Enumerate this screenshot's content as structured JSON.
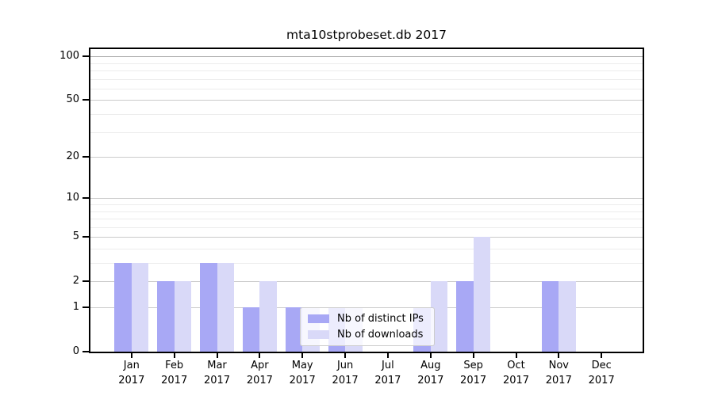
{
  "chart_data": {
    "type": "bar",
    "title": "mta10stprobeset.db 2017",
    "categories": [
      "Jan",
      "Feb",
      "Mar",
      "Apr",
      "May",
      "Jun",
      "Jul",
      "Aug",
      "Sep",
      "Oct",
      "Nov",
      "Dec"
    ],
    "x_tick_year_line": "2017",
    "series": [
      {
        "name": "Nb of distinct IPs",
        "color": "#a8a8f5",
        "values": [
          3,
          2,
          3,
          1,
          1,
          1,
          0,
          1,
          2,
          0,
          2,
          0
        ]
      },
      {
        "name": "Nb of downloads",
        "color": "#d9d9f8",
        "values": [
          3,
          2,
          3,
          2,
          1,
          1,
          0,
          2,
          5,
          0,
          2,
          0
        ]
      }
    ],
    "yscale": "log1p",
    "ylim": [
      0,
      112
    ],
    "yticks": [
      0,
      1,
      2,
      5,
      10,
      20,
      50,
      100
    ],
    "minor_gridlines": [
      3,
      4,
      6,
      7,
      8,
      9,
      30,
      40,
      60,
      70,
      80,
      90
    ],
    "grid": "on",
    "legend_position": "lower-center"
  }
}
